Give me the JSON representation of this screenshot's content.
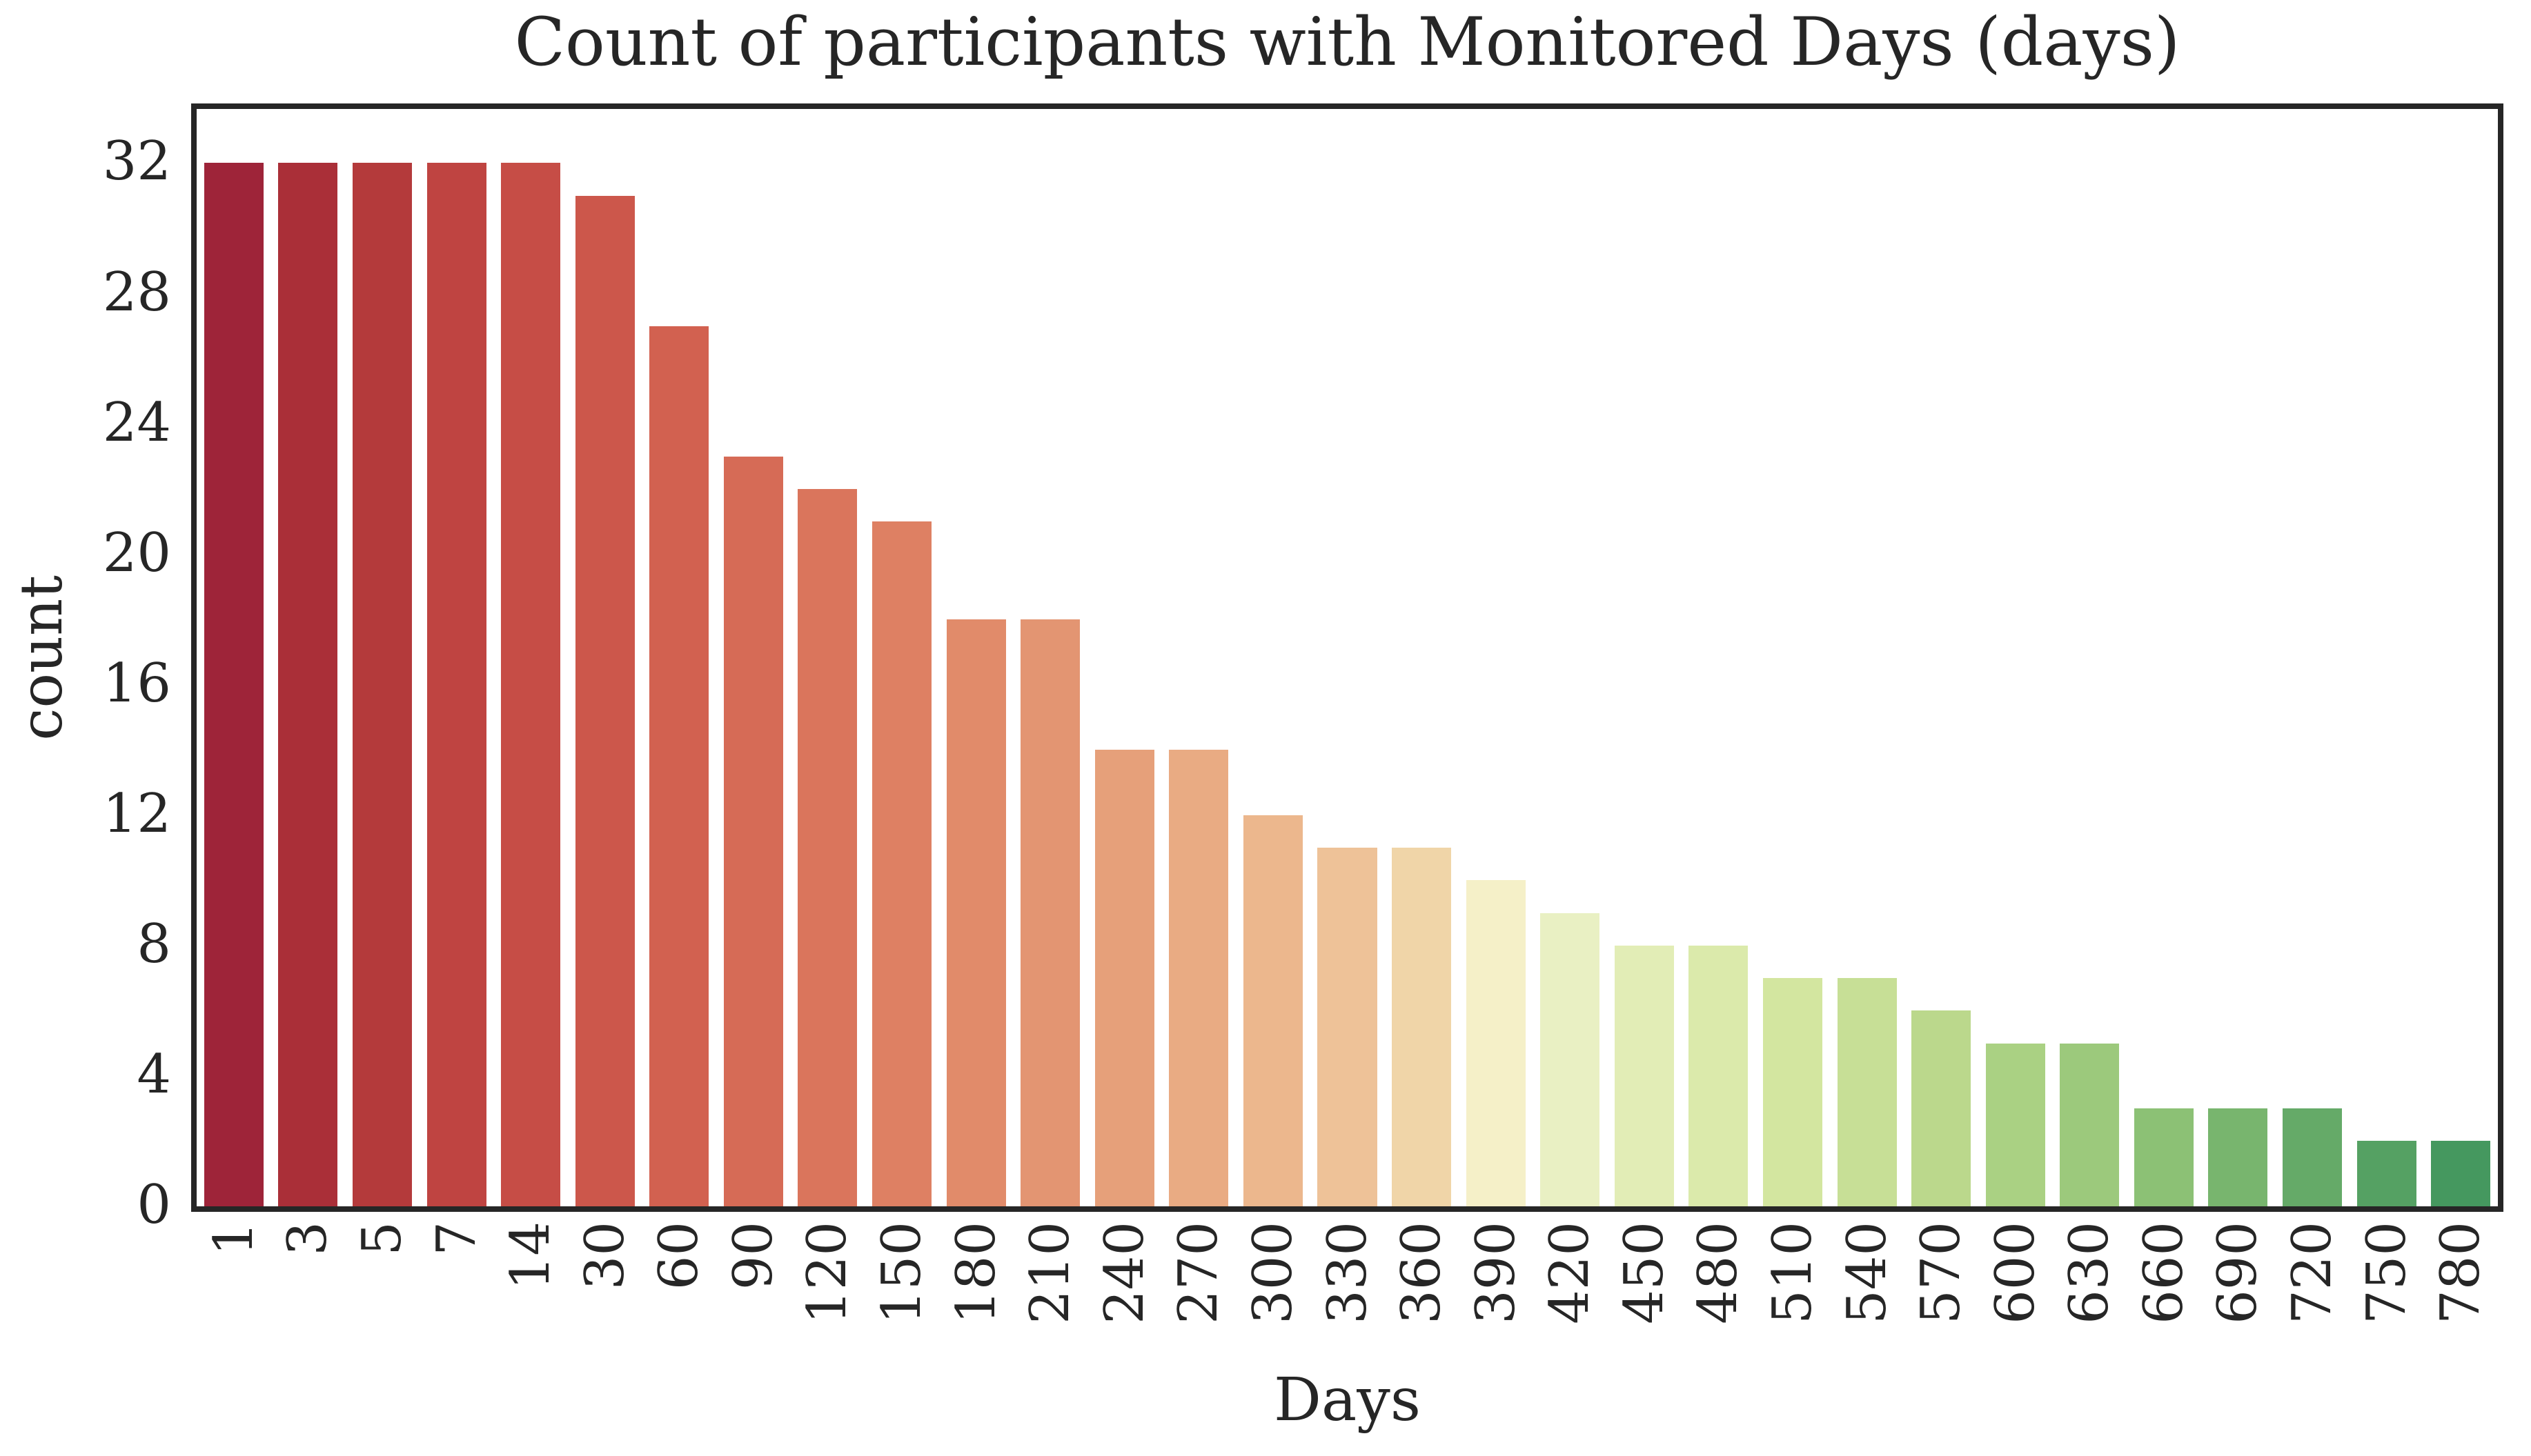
{
  "figure": {
    "title": "Count of participants with Monitored Days (days)",
    "xlabel": "Days",
    "ylabel": "count",
    "text_color": "#262626",
    "background_color": "#ffffff",
    "spine_color": "#262626"
  },
  "chart_data": {
    "type": "bar",
    "title": "Count of participants with Monitored Days (days)",
    "xlabel": "Days",
    "ylabel": "count",
    "categories": [
      "1",
      "3",
      "5",
      "7",
      "14",
      "30",
      "60",
      "90",
      "120",
      "150",
      "180",
      "210",
      "240",
      "270",
      "300",
      "330",
      "360",
      "390",
      "420",
      "450",
      "480",
      "510",
      "540",
      "570",
      "600",
      "630",
      "660",
      "690",
      "720",
      "750",
      "780"
    ],
    "values": [
      32,
      32,
      32,
      32,
      32,
      31,
      27,
      23,
      22,
      21,
      18,
      18,
      14,
      14,
      12,
      11,
      11,
      10,
      9,
      8,
      8,
      7,
      7,
      6,
      5,
      5,
      3,
      3,
      3,
      2,
      2
    ],
    "bar_colors": [
      "#9e2439",
      "#aa2f38",
      "#b43a3b",
      "#bf4441",
      "#c64d46",
      "#cc574b",
      "#d26150",
      "#d66b56",
      "#da755c",
      "#de8063",
      "#e18b6a",
      "#e39572",
      "#e6a07a",
      "#e9ab83",
      "#ecb78d",
      "#eec298",
      "#f0d5a8",
      "#f5f0c8",
      "#e9f0c3",
      "#e2edb6",
      "#dbeaab",
      "#d3e6a0",
      "#c7df96",
      "#bbd88c",
      "#aad183",
      "#9cc97c",
      "#8cc175",
      "#78b56e",
      "#65aa68",
      "#55a163",
      "#45985f"
    ],
    "y_ticks": [
      0,
      4,
      8,
      12,
      16,
      20,
      24,
      28,
      32
    ],
    "ylim": [
      0,
      33.66
    ],
    "grid": false,
    "legend": null,
    "x_tick_rotation_degrees": 90
  }
}
